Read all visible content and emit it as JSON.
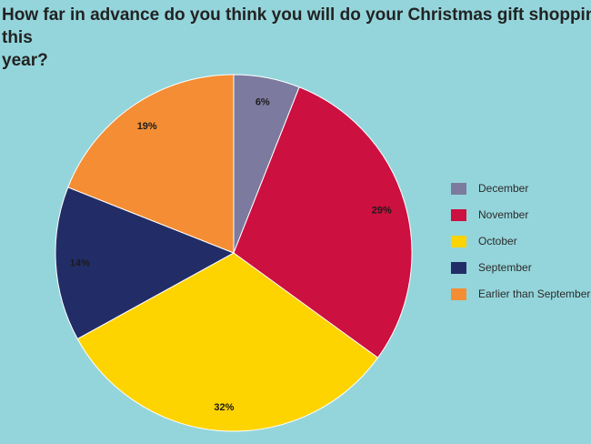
{
  "chart_data": {
    "type": "pie",
    "title": "How far in advance do you think you will do your Christmas gift shopping this\nyear?",
    "slices": [
      {
        "label": "December",
        "value": 6,
        "display": "6%",
        "color": "#7d7a9f"
      },
      {
        "label": "November",
        "value": 29,
        "display": "29%",
        "color": "#cc1040"
      },
      {
        "label": "October",
        "value": 32,
        "display": "32%",
        "color": "#fdd300"
      },
      {
        "label": "September",
        "value": 14,
        "display": "14%",
        "color": "#222d67"
      },
      {
        "label": "Earlier than September",
        "value": 19,
        "display": "19%",
        "color": "#f48d34"
      }
    ],
    "legend_position": "right",
    "start": "12 o'clock, clockwise"
  }
}
